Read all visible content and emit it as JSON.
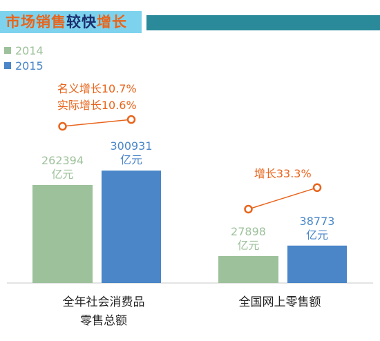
{
  "header": {
    "title_part1": "市场销售",
    "title_part2": "较快",
    "title_part3": "增长",
    "colors": {
      "light_blue": "#7dd3ee",
      "teal": "#2a8a99",
      "orange": "#e8641b",
      "navy": "#1b2e6e"
    }
  },
  "chart_data": {
    "type": "bar",
    "legend_position": "top-left",
    "series": [
      {
        "name": "2014",
        "color": "#9dc19a",
        "values": [
          262394,
          27898
        ],
        "value_labels": [
          "262394",
          "27898"
        ]
      },
      {
        "name": "2015",
        "color": "#4a86c8",
        "values": [
          300931,
          38773
        ],
        "value_labels": [
          "300931",
          "38773"
        ]
      }
    ],
    "unit": "亿元",
    "groups": [
      {
        "label_lines": [
          "全年社会消费品",
          "零售总额"
        ],
        "growth_lines": [
          "名义增长10.7%",
          "实际增长10.6%"
        ]
      },
      {
        "label_lines": [
          "全国网上零售额"
        ],
        "growth_lines": [
          "增长33.3%"
        ]
      }
    ]
  }
}
